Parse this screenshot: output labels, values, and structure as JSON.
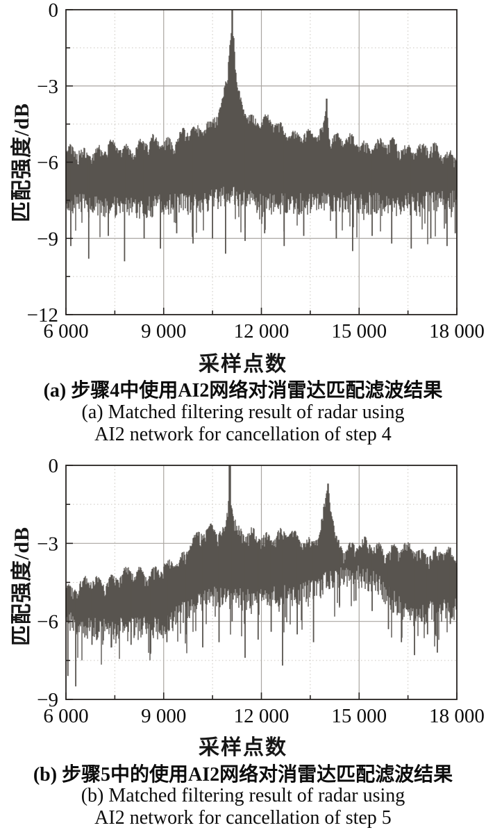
{
  "page": {
    "background": "#ffffff"
  },
  "chart_data": [
    {
      "id": "a",
      "type": "line",
      "series_name": "matched-filter-output-step4",
      "xlabel": "采样点数",
      "ylabel": "匹配强度/dB",
      "caption_zh": "(a) 步骤4中使用AI2网络对消雷达匹配滤波结果",
      "caption_en_1": "(a) Matched filtering result of radar using",
      "caption_en_2": "AI2 network for cancellation of step 4",
      "xlim": [
        6000,
        18000
      ],
      "ylim": [
        -12,
        0
      ],
      "xticks": [
        6000,
        9000,
        12000,
        15000,
        18000
      ],
      "xtick_labels": [
        "6 000",
        "9 000",
        "12 000",
        "15 000",
        "18 000"
      ],
      "yticks": [
        0,
        -3,
        -6,
        -9,
        -12
      ],
      "ytick_labels": [
        "0",
        "−3",
        "−6",
        "−9",
        "−12"
      ],
      "xminor": [
        7500,
        10500,
        13500,
        16500
      ],
      "yminor": [
        -1.5,
        -4.5,
        -7.5,
        -10.5
      ],
      "grid": "major-solid, minor-dotted",
      "line_color": "#58544f",
      "peaks": [
        {
          "x": 11100,
          "y": 0
        },
        {
          "x": 14000,
          "y": -3.5
        }
      ],
      "envelope_top": [
        [
          6000,
          -5.6
        ],
        [
          6500,
          -5.5
        ],
        [
          7000,
          -5.4
        ],
        [
          7500,
          -5.4
        ],
        [
          8000,
          -5.3
        ],
        [
          8500,
          -5.2
        ],
        [
          9000,
          -5.1
        ],
        [
          9500,
          -4.9
        ],
        [
          10000,
          -4.7
        ],
        [
          10300,
          -4.4
        ],
        [
          10600,
          -4.0
        ],
        [
          10800,
          -3.6
        ],
        [
          10950,
          -2.8
        ],
        [
          11050,
          -1.0
        ],
        [
          11100,
          0
        ],
        [
          11150,
          -1.0
        ],
        [
          11250,
          -3.0
        ],
        [
          11400,
          -3.6
        ],
        [
          11600,
          -4.0
        ],
        [
          11900,
          -4.3
        ],
        [
          12200,
          -4.4
        ],
        [
          12500,
          -4.5
        ],
        [
          13000,
          -4.8
        ],
        [
          13500,
          -5.0
        ],
        [
          13900,
          -4.6
        ],
        [
          14000,
          -3.5
        ],
        [
          14100,
          -4.8
        ],
        [
          14500,
          -5.1
        ],
        [
          15000,
          -5.2
        ],
        [
          15500,
          -5.2
        ],
        [
          16000,
          -5.3
        ],
        [
          16500,
          -5.3
        ],
        [
          17000,
          -5.4
        ],
        [
          17500,
          -5.5
        ],
        [
          18000,
          -5.6
        ]
      ],
      "envelope_bottom": [
        [
          6000,
          -7.6
        ],
        [
          7000,
          -7.8
        ],
        [
          8000,
          -7.8
        ],
        [
          9000,
          -7.7
        ],
        [
          10000,
          -7.6
        ],
        [
          11000,
          -7.3
        ],
        [
          12000,
          -7.6
        ],
        [
          13000,
          -7.7
        ],
        [
          14000,
          -7.5
        ],
        [
          15000,
          -7.6
        ],
        [
          16000,
          -7.7
        ],
        [
          17000,
          -7.6
        ],
        [
          18000,
          -7.5
        ]
      ],
      "nulls": [
        [
          6150,
          -9.3
        ],
        [
          6700,
          -9.8
        ],
        [
          7300,
          -8.9
        ],
        [
          7800,
          -9.9
        ],
        [
          8400,
          -9.0
        ],
        [
          8900,
          -9.4
        ],
        [
          9400,
          -8.8
        ],
        [
          9900,
          -9.2
        ],
        [
          10500,
          -9.0
        ],
        [
          10900,
          -9.6
        ],
        [
          11500,
          -9.1
        ],
        [
          12100,
          -8.8
        ],
        [
          12700,
          -9.3
        ],
        [
          13300,
          -8.9
        ],
        [
          14300,
          -9.0
        ],
        [
          14800,
          -9.5
        ],
        [
          15400,
          -8.9
        ],
        [
          16000,
          -9.2
        ],
        [
          16600,
          -9.4
        ],
        [
          17200,
          -9.0
        ],
        [
          17700,
          -9.3
        ],
        [
          17950,
          -8.8
        ]
      ]
    },
    {
      "id": "b",
      "type": "line",
      "series_name": "matched-filter-output-step5",
      "xlabel": "采样点数",
      "ylabel": "匹配强度/dB",
      "caption_zh": "(b) 步骤5中的使用AI2网络对消雷达匹配滤波结果",
      "caption_en_1": "(b) Matched filtering result of radar using",
      "caption_en_2": "AI2 network for cancellation of step 5",
      "xlim": [
        6000,
        18000
      ],
      "ylim": [
        -9,
        0
      ],
      "xticks": [
        6000,
        9000,
        12000,
        15000,
        18000
      ],
      "xtick_labels": [
        "6 000",
        "9 000",
        "12 000",
        "15 000",
        "18 000"
      ],
      "yticks": [
        0,
        -3,
        -6,
        -9
      ],
      "ytick_labels": [
        "0",
        "−3",
        "−6",
        "−9"
      ],
      "xminor": [
        7500,
        10500,
        13500,
        16500
      ],
      "yminor": [
        -1.5,
        -4.5,
        -7.5
      ],
      "grid": "major-solid, minor-dotted",
      "line_color": "#58544f",
      "peaks": [
        {
          "x": 11030,
          "y": 0
        },
        {
          "x": 14050,
          "y": -0.7
        }
      ],
      "envelope_top": [
        [
          6000,
          -4.6
        ],
        [
          6500,
          -4.5
        ],
        [
          7000,
          -4.4
        ],
        [
          7500,
          -4.2
        ],
        [
          8000,
          -4.1
        ],
        [
          8500,
          -4.0
        ],
        [
          9000,
          -3.9
        ],
        [
          9300,
          -3.8
        ],
        [
          9600,
          -3.4
        ],
        [
          9800,
          -2.8
        ],
        [
          10000,
          -2.6
        ],
        [
          10500,
          -2.5
        ],
        [
          10900,
          -2.4
        ],
        [
          10980,
          -1.2
        ],
        [
          11030,
          0
        ],
        [
          11100,
          -1.4
        ],
        [
          11250,
          -2.4
        ],
        [
          11500,
          -2.7
        ],
        [
          12000,
          -2.6
        ],
        [
          12500,
          -2.6
        ],
        [
          13000,
          -2.7
        ],
        [
          13400,
          -2.8
        ],
        [
          13800,
          -2.6
        ],
        [
          13950,
          -1.6
        ],
        [
          14050,
          -0.7
        ],
        [
          14150,
          -1.8
        ],
        [
          14300,
          -2.9
        ],
        [
          14500,
          -3.0
        ],
        [
          15000,
          -3.0
        ],
        [
          15500,
          -3.1
        ],
        [
          16000,
          -3.1
        ],
        [
          16500,
          -3.2
        ],
        [
          17000,
          -3.2
        ],
        [
          17500,
          -3.3
        ],
        [
          18000,
          -3.5
        ]
      ],
      "envelope_bottom": [
        [
          6000,
          -6.0
        ],
        [
          6500,
          -6.2
        ],
        [
          7000,
          -6.3
        ],
        [
          8000,
          -6.3
        ],
        [
          9000,
          -6.2
        ],
        [
          9800,
          -5.5
        ],
        [
          10500,
          -5.0
        ],
        [
          11200,
          -5.2
        ],
        [
          12000,
          -5.0
        ],
        [
          13000,
          -5.0
        ],
        [
          14000,
          -4.5
        ],
        [
          14500,
          -4.2
        ],
        [
          15000,
          -4.3
        ],
        [
          15500,
          -4.5
        ],
        [
          16000,
          -5.2
        ],
        [
          16700,
          -5.8
        ],
        [
          17300,
          -5.6
        ],
        [
          18000,
          -5.5
        ]
      ],
      "nulls": [
        [
          6060,
          -8.1
        ],
        [
          6300,
          -8.5
        ],
        [
          6800,
          -6.9
        ],
        [
          7400,
          -7.0
        ],
        [
          8000,
          -6.9
        ],
        [
          8600,
          -7.2
        ],
        [
          9100,
          -6.8
        ],
        [
          9700,
          -6.5
        ],
        [
          10200,
          -7.0
        ],
        [
          10700,
          -6.8
        ],
        [
          11100,
          -6.0
        ],
        [
          11500,
          -7.4
        ],
        [
          11900,
          -6.7
        ],
        [
          12300,
          -6.4
        ],
        [
          12650,
          -7.7
        ],
        [
          13100,
          -6.5
        ],
        [
          13600,
          -6.8
        ],
        [
          14400,
          -5.4
        ],
        [
          14900,
          -5.2
        ],
        [
          15400,
          -5.6
        ],
        [
          15900,
          -6.3
        ],
        [
          16300,
          -6.8
        ],
        [
          16700,
          -7.3
        ],
        [
          17100,
          -6.5
        ],
        [
          17400,
          -7.2
        ],
        [
          17800,
          -6.1
        ]
      ]
    }
  ],
  "colors": {
    "signal": "#58544f",
    "grid_major": "#a9a5a0",
    "grid_minor": "#c9c5bf",
    "axis": "#262220",
    "text": "#0c0c0c"
  }
}
